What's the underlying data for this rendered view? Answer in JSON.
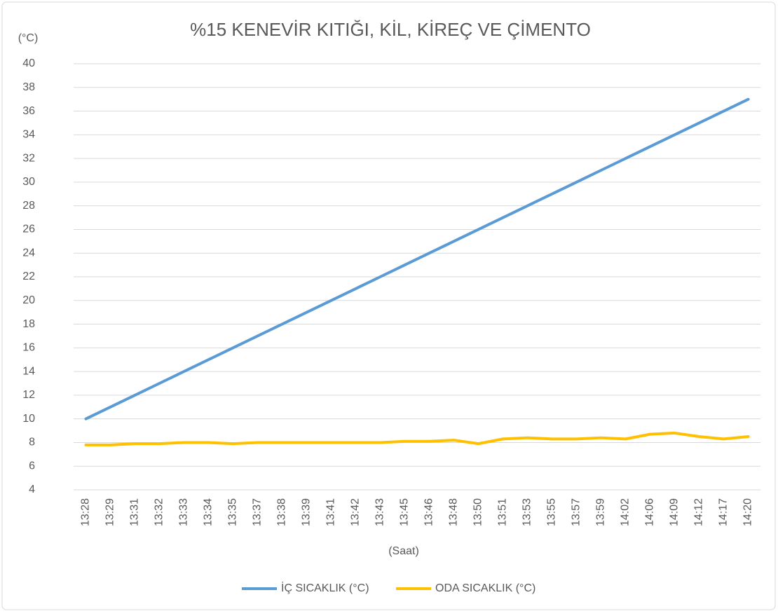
{
  "chart_data": {
    "type": "line",
    "title": "%15 KENEVİR KITIĞI, KİL, KİREÇ VE ÇİMENTO",
    "y_label": "(°C)",
    "x_label": "(Saat)",
    "categories": [
      "13:28",
      "13:29",
      "13:31",
      "13:32",
      "13:33",
      "13:34",
      "13:35",
      "13:37",
      "13:38",
      "13:39",
      "13:41",
      "13:42",
      "13:43",
      "13:45",
      "13:46",
      "13:48",
      "13:50",
      "13:51",
      "13:53",
      "13:55",
      "13:57",
      "13:59",
      "14:02",
      "14:06",
      "14:09",
      "14:12",
      "14:17",
      "14:20"
    ],
    "series": [
      {
        "name": "İÇ SICAKLIK (°C)",
        "color": "#5b9bd5",
        "values": [
          10,
          11,
          12,
          13,
          14,
          15,
          16,
          17,
          18,
          19,
          20,
          21,
          22,
          23,
          24,
          25,
          26,
          27,
          28,
          29,
          30,
          31,
          32,
          33,
          34,
          35,
          36,
          37
        ]
      },
      {
        "name": "ODA SICAKLIK (°C)",
        "color": "#ffc000",
        "values": [
          7.8,
          7.8,
          7.9,
          7.9,
          8.0,
          8.0,
          7.9,
          8.0,
          8.0,
          8.0,
          8.0,
          8.0,
          8.0,
          8.1,
          8.1,
          8.2,
          7.9,
          8.3,
          8.4,
          8.3,
          8.3,
          8.4,
          8.3,
          8.7,
          8.8,
          8.5,
          8.3,
          8.5
        ]
      }
    ],
    "ylim": [
      4,
      40
    ],
    "yticks": [
      4,
      6,
      8,
      10,
      12,
      14,
      16,
      18,
      20,
      22,
      24,
      26,
      28,
      30,
      32,
      34,
      36,
      38,
      40
    ],
    "grid": true,
    "legend": "bottom"
  }
}
